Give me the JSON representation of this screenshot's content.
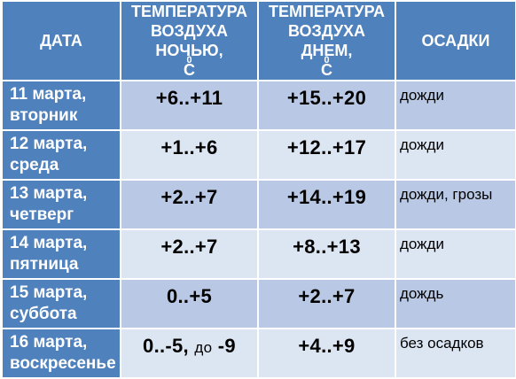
{
  "header": {
    "date": "ДАТА",
    "night": {
      "line1": "ТЕМПЕРАТУРА",
      "line2": "ВОЗДУХА",
      "line3": "НОЧЬЮ, ",
      "unit_sup": "0",
      "unit": "С"
    },
    "day": {
      "line1": "ТЕМПЕРАТУРА",
      "line2": "ВОЗДУХА",
      "line3": "ДНЕМ, ",
      "unit_sup": "0",
      "unit": "С"
    },
    "precip": "ОСАДКИ"
  },
  "rows": [
    {
      "date": "11 марта,",
      "weekday": "вторник",
      "night": "+6..+11",
      "day": "+15..+20",
      "precip": "дожди"
    },
    {
      "date": "12 марта,",
      "weekday": "среда",
      "night": "+1..+6",
      "day": "+12..+17",
      "precip": "дожди"
    },
    {
      "date": "13 марта,",
      "weekday": "четверг",
      "night": "+2..+7",
      "day": "+14..+19",
      "precip": "дожди, грозы"
    },
    {
      "date": "14 марта,",
      "weekday": "пятница",
      "night": "+2..+7",
      "day": "+8..+13",
      "precip": "дожди"
    },
    {
      "date": "15 марта,",
      "weekday": "суббота",
      "night": "0..+5",
      "day": "+2..+7",
      "precip": "дождь"
    },
    {
      "date": "16 марта,",
      "weekday": "воскресенье",
      "night_a": "0..-5,",
      "night_b": "до",
      "night_c": "-9",
      "day": "+4..+9",
      "precip": "без осадков"
    }
  ],
  "colors": {
    "header_bg": "#4f81bd",
    "row_odd": "#b9c9e5",
    "row_even": "#dce5f2"
  }
}
